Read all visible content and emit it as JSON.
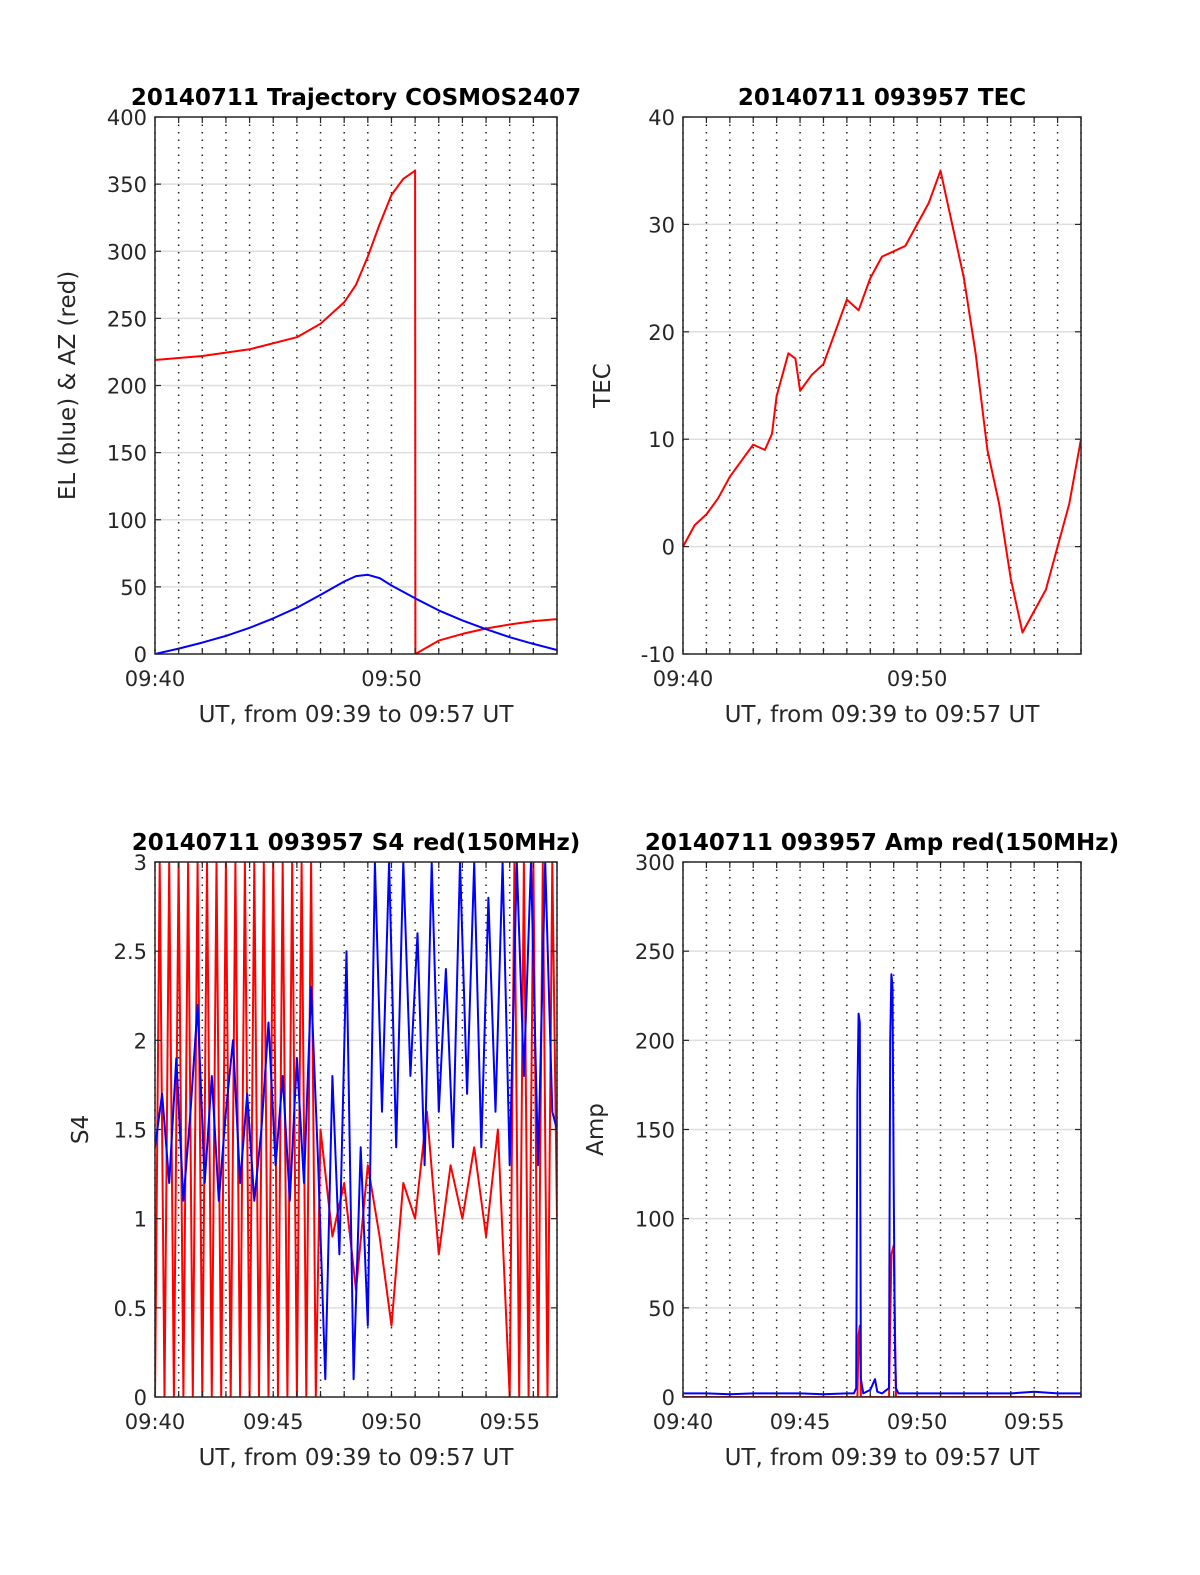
{
  "colors": {
    "red": "#ff0000",
    "blue": "#0000ff",
    "axis": "#262626",
    "grid": "#dedede"
  },
  "chart_data": [
    {
      "id": "trajectory",
      "type": "line",
      "title": "20140711 Trajectory COSMOS2407",
      "xlabel": "UT, from 09:39 to 09:57 UT",
      "ylabel": "EL (blue) & AZ (red)",
      "xlim": [
        0,
        17
      ],
      "ylim": [
        0,
        400
      ],
      "xticks": [
        0,
        10
      ],
      "xtick_labels": [
        "09:40",
        "09:50"
      ],
      "yticks": [
        0,
        50,
        100,
        150,
        200,
        250,
        300,
        350,
        400
      ],
      "ytick_labels": [
        "0",
        "50",
        "100",
        "150",
        "200",
        "250",
        "300",
        "350",
        "400"
      ],
      "grid": "horizontal major lines, dotted vertical lines every 1 min",
      "series": [
        {
          "color": "#ff0000",
          "x": [
            0,
            2,
            4,
            6,
            7,
            8,
            8.5,
            9,
            9.5,
            10,
            10.5,
            11,
            11.01,
            12,
            13,
            14,
            15,
            16,
            17
          ],
          "y": [
            219,
            222,
            227,
            236,
            246,
            262,
            275,
            296,
            320,
            342,
            354,
            360,
            0,
            10,
            15,
            19,
            22,
            24.5,
            26
          ]
        },
        {
          "color": "#0000ff",
          "x": [
            0,
            1,
            2,
            3,
            4,
            5,
            6,
            7,
            8,
            8.5,
            9,
            9.5,
            10,
            11,
            12,
            13,
            14,
            15,
            16,
            17
          ],
          "y": [
            0,
            4,
            8.5,
            13.5,
            19.5,
            26.5,
            34.5,
            44,
            54,
            58,
            59,
            56.5,
            51,
            41.5,
            32.5,
            25,
            18.5,
            12.5,
            7.5,
            3
          ]
        }
      ]
    },
    {
      "id": "tec",
      "type": "line",
      "title": "20140711 093957 TEC",
      "xlabel": "UT, from 09:39 to 09:57 UT",
      "ylabel": "TEC",
      "xlim": [
        0,
        17
      ],
      "ylim": [
        -10,
        40
      ],
      "xticks": [
        0,
        10
      ],
      "xtick_labels": [
        "09:40",
        "09:50"
      ],
      "yticks": [
        -10,
        0,
        10,
        20,
        30,
        40
      ],
      "ytick_labels": [
        "-10",
        "0",
        "10",
        "20",
        "30",
        "40"
      ],
      "grid": "horizontal major lines, dotted vertical lines every 1 min",
      "series": [
        {
          "color": "#ff0000",
          "x": [
            0,
            0.5,
            1,
            1.5,
            2,
            2.5,
            3,
            3.5,
            3.8,
            4,
            4.5,
            4.8,
            5,
            5.5,
            6,
            6.5,
            7,
            7.5,
            8,
            8.5,
            9,
            9.5,
            10,
            10.5,
            11,
            11.5,
            12,
            12.5,
            13,
            13.5,
            14,
            14.5,
            15,
            15.5,
            16,
            16.5,
            17
          ],
          "y": [
            0,
            2,
            3,
            4.5,
            6.5,
            8,
            9.5,
            9,
            10.5,
            14,
            18,
            17.5,
            14.5,
            16,
            17,
            20,
            23,
            22,
            25,
            27,
            27.5,
            28,
            30,
            32,
            35,
            30,
            25,
            18,
            9,
            4,
            -3,
            -8,
            -6,
            -4,
            0,
            4,
            10
          ]
        }
      ]
    },
    {
      "id": "s4",
      "type": "line",
      "title": "20140711 093957 S4 red(150MHz)",
      "xlabel": "UT, from 09:39 to 09:57 UT",
      "ylabel": "S4",
      "xlim": [
        0,
        17
      ],
      "ylim": [
        0,
        3
      ],
      "xticks": [
        0,
        5,
        10,
        15
      ],
      "xtick_labels": [
        "09:40",
        "09:45",
        "09:50",
        "09:55"
      ],
      "yticks": [
        0,
        0.5,
        1,
        1.5,
        2,
        2.5,
        3
      ],
      "ytick_labels": [
        "0",
        "0.5",
        "1",
        "1.5",
        "2",
        "2.5",
        "3"
      ],
      "grid": "horizontal major lines, dotted vertical lines every 1 min",
      "series": [
        {
          "color": "#ff0000",
          "x": [
            0,
            0.2,
            0.4,
            0.6,
            0.8,
            1,
            1.2,
            1.4,
            1.6,
            1.8,
            2,
            2.2,
            2.4,
            2.6,
            2.8,
            3,
            3.2,
            3.4,
            3.6,
            3.8,
            4,
            4.2,
            4.4,
            4.6,
            4.8,
            5,
            5.2,
            5.4,
            5.6,
            5.8,
            6,
            6.2,
            6.4,
            6.6,
            6.8,
            7,
            7.5,
            8,
            8.5,
            9,
            9.5,
            10,
            10.5,
            11,
            11.5,
            12,
            12.5,
            13,
            13.5,
            14,
            14.5,
            15,
            15.2,
            15.4,
            15.6,
            15.8,
            16,
            16.2,
            16.4,
            16.6,
            16.8,
            17
          ],
          "y": [
            0,
            3,
            0,
            3,
            0,
            3,
            0,
            3,
            0,
            3,
            0,
            3,
            0,
            3,
            0,
            3,
            0,
            3,
            0,
            3,
            0,
            3,
            0,
            3,
            0,
            3,
            0,
            3,
            0,
            3,
            0,
            3,
            0,
            3,
            0,
            1.5,
            0.9,
            1.2,
            0.6,
            1.3,
            0.9,
            0.4,
            1.2,
            1.0,
            1.6,
            0.8,
            1.3,
            1.0,
            1.4,
            0.9,
            1.5,
            0,
            3,
            0,
            3,
            0,
            3,
            0,
            3,
            0,
            3,
            1.0
          ]
        },
        {
          "color": "#0000ff",
          "x": [
            0,
            0.3,
            0.6,
            0.9,
            1.2,
            1.5,
            1.8,
            2.1,
            2.4,
            2.7,
            3,
            3.3,
            3.6,
            3.9,
            4.2,
            4.5,
            4.8,
            5.1,
            5.4,
            5.7,
            6,
            6.3,
            6.6,
            6.9,
            7.2,
            7.5,
            7.8,
            8.1,
            8.4,
            8.7,
            9,
            9.3,
            9.6,
            9.9,
            10.2,
            10.5,
            10.8,
            11.1,
            11.4,
            11.7,
            12,
            12.3,
            12.6,
            12.9,
            13.2,
            13.5,
            13.8,
            14.1,
            14.4,
            14.7,
            15,
            15.3,
            15.6,
            15.9,
            16.2,
            16.5,
            16.8,
            17
          ],
          "y": [
            1.4,
            1.7,
            1.2,
            1.9,
            1.1,
            1.6,
            2.2,
            1.2,
            1.8,
            1.1,
            1.6,
            2.0,
            1.2,
            1.7,
            1.1,
            1.5,
            2.1,
            1.3,
            1.8,
            1.1,
            1.9,
            1.2,
            2.3,
            1.3,
            0.1,
            1.8,
            0.8,
            2.5,
            0.1,
            1.4,
            0.4,
            3.0,
            1.6,
            3.0,
            1.4,
            3.0,
            1.8,
            2.6,
            1.3,
            3.0,
            1.6,
            2.4,
            1.4,
            3.0,
            1.7,
            3.0,
            1.4,
            2.8,
            1.6,
            3.0,
            1.3,
            3.0,
            1.8,
            3.0,
            1.3,
            3.0,
            1.6,
            1.5
          ]
        }
      ]
    },
    {
      "id": "amp",
      "type": "line",
      "title": "20140711 093957 Amp red(150MHz)",
      "xlabel": "UT, from 09:39 to 09:57 UT",
      "ylabel": "Amp",
      "xlim": [
        0,
        17
      ],
      "ylim": [
        0,
        300
      ],
      "xticks": [
        0,
        5,
        10,
        15
      ],
      "xtick_labels": [
        "09:40",
        "09:45",
        "09:50",
        "09:55"
      ],
      "yticks": [
        0,
        50,
        100,
        150,
        200,
        250,
        300
      ],
      "ytick_labels": [
        "0",
        "50",
        "100",
        "150",
        "200",
        "250",
        "300"
      ],
      "grid": "horizontal major lines, dotted vertical lines every 1 min",
      "series": [
        {
          "color": "#ff0000",
          "x": [
            0,
            7.45,
            7.5,
            7.55,
            7.6,
            8.8,
            8.9,
            9.0,
            9.1,
            17
          ],
          "y": [
            0,
            0,
            35,
            40,
            0,
            0,
            80,
            85,
            0,
            0
          ]
        },
        {
          "color": "#0000ff",
          "x": [
            0,
            1,
            2,
            3,
            4,
            5,
            6,
            7,
            7.3,
            7.4,
            7.45,
            7.5,
            7.55,
            7.6,
            7.7,
            8.0,
            8.2,
            8.3,
            8.5,
            8.8,
            8.85,
            8.9,
            8.95,
            9.0,
            9.05,
            9.1,
            9.2,
            10,
            11,
            12,
            13,
            14,
            15,
            16,
            17
          ],
          "y": [
            2,
            2,
            1.5,
            2,
            2,
            2,
            1.5,
            2,
            2,
            5,
            170,
            215,
            210,
            10,
            2,
            4,
            10,
            3,
            2,
            5,
            200,
            237,
            230,
            120,
            30,
            5,
            2,
            2,
            2,
            2,
            2,
            2,
            3,
            2,
            2
          ]
        }
      ]
    }
  ]
}
